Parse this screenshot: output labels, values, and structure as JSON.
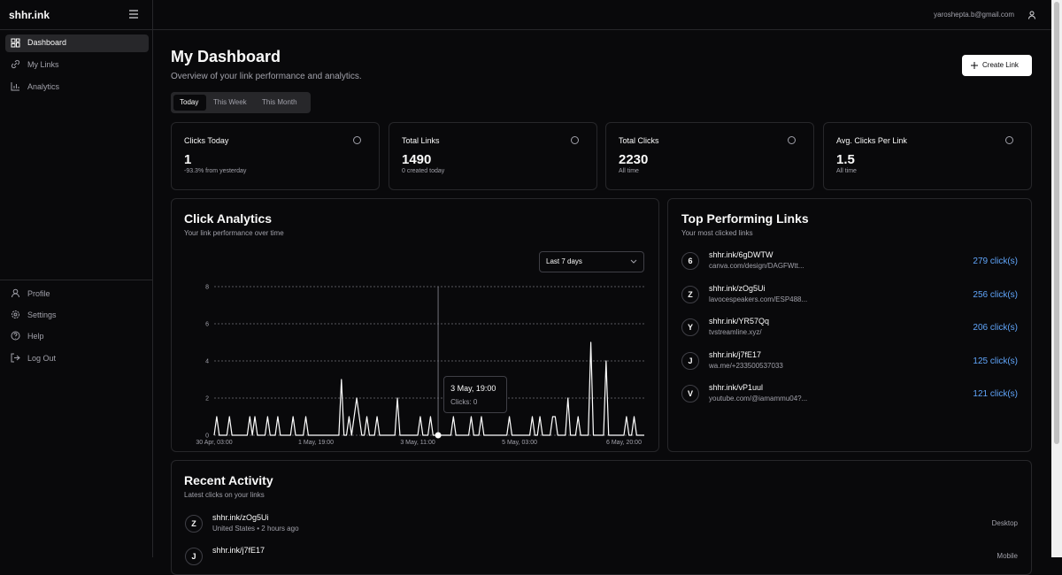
{
  "sidebar": {
    "brand": "shhr.ink",
    "nav": [
      "Dashboard",
      "My Links",
      "Analytics"
    ],
    "footer_nav": [
      "Profile",
      "Settings",
      "Help",
      "Log Out"
    ]
  },
  "header": {
    "email": "yaroshepta.b@gmail.com"
  },
  "page": {
    "title": "My Dashboard",
    "subtitle": "Overview of your link performance and analytics.",
    "tabs": [
      "Today",
      "This Week",
      "This Month"
    ],
    "create_button": "Create Link"
  },
  "stats": [
    {
      "label": "Clicks Today",
      "value": 1,
      "note": "-93.3% from yesterday"
    },
    {
      "label": "Total Links",
      "value": 1490,
      "note": "0 created today"
    },
    {
      "label": "Total Clicks",
      "value": 2230,
      "note": "All time"
    },
    {
      "label": "Avg. Clicks Per Link",
      "value": 1.5,
      "note": "All time"
    }
  ],
  "chart_card": {
    "range_select": "Last 7 days"
  },
  "chart_data": {
    "type": "line",
    "title": "Click Analytics",
    "subtitle": "Your link performance over time",
    "color": "#ffffff",
    "grid": true,
    "ylim": [
      0,
      8
    ],
    "yticks": [
      0,
      2,
      4,
      6,
      8
    ],
    "categories": [
      "30 Apr, 03:00",
      null,
      null,
      null,
      null,
      null,
      null,
      null,
      null,
      null,
      null,
      null,
      null,
      null,
      null,
      null,
      null,
      null,
      null,
      null,
      null,
      null,
      null,
      null,
      null,
      null,
      null,
      null,
      null,
      null,
      null,
      null,
      null,
      null,
      null,
      null,
      null,
      null,
      null,
      null,
      "1 May, 19:00",
      null,
      null,
      null,
      null,
      null,
      null,
      null,
      null,
      null,
      null,
      null,
      null,
      null,
      null,
      null,
      null,
      null,
      null,
      null,
      null,
      null,
      null,
      null,
      null,
      null,
      null,
      null,
      null,
      null,
      null,
      null,
      null,
      null,
      null,
      null,
      null,
      null,
      null,
      null,
      "3 May, 11:00",
      null,
      null,
      null,
      null,
      null,
      null,
      null,
      null,
      null,
      null,
      null,
      null,
      null,
      null,
      null,
      null,
      null,
      null,
      null,
      null,
      null,
      null,
      null,
      null,
      null,
      null,
      null,
      null,
      null,
      null,
      null,
      null,
      null,
      null,
      null,
      null,
      null,
      null,
      null,
      "5 May, 03:00",
      null,
      null,
      null,
      null,
      null,
      null,
      null,
      null,
      null,
      null,
      null,
      null,
      null,
      null,
      null,
      null,
      null,
      null,
      null,
      null,
      null,
      null,
      null,
      null,
      null,
      null,
      null,
      null,
      null,
      null,
      null,
      null,
      null,
      null,
      null,
      null,
      null,
      null,
      null,
      null,
      "6 May, 20:00",
      null,
      null,
      null,
      null,
      null,
      null,
      null,
      null
    ],
    "values": [
      0,
      1,
      0,
      0,
      0,
      0,
      1,
      0,
      0,
      0,
      0,
      0,
      0,
      0,
      1,
      0,
      1,
      0,
      0,
      0,
      0,
      1,
      0,
      0,
      0,
      1,
      0,
      0,
      0,
      0,
      0,
      1,
      0,
      0,
      0,
      0,
      1,
      0,
      0,
      0,
      0,
      0,
      0,
      0,
      0,
      0,
      0,
      0,
      0,
      0,
      3,
      0,
      0,
      1,
      0,
      1,
      2,
      1,
      0,
      0,
      1,
      0,
      0,
      0,
      1,
      0,
      0,
      0,
      0,
      0,
      0,
      0,
      2,
      0,
      0,
      0,
      0,
      0,
      0,
      0,
      0,
      1,
      0,
      0,
      0,
      1,
      0,
      0,
      0,
      0,
      0,
      0,
      0,
      0,
      1,
      0,
      0,
      0,
      0,
      0,
      0,
      1,
      0,
      0,
      0,
      1,
      0,
      0,
      0,
      0,
      0,
      0,
      0,
      0,
      0,
      0,
      1,
      0,
      0,
      0,
      0,
      0,
      0,
      0,
      0,
      1,
      0,
      0,
      1,
      0,
      0,
      0,
      0,
      1,
      1,
      0,
      0,
      0,
      0,
      2,
      0,
      0,
      0,
      1,
      0,
      0,
      0,
      0,
      5,
      0,
      0,
      0,
      0,
      0,
      4,
      0,
      0,
      0,
      0,
      0,
      0,
      0,
      1,
      0,
      0,
      1,
      0,
      0,
      0,
      0
    ],
    "tooltip": {
      "point": 88,
      "label": "3 May, 19:00",
      "text": "Clicks: 0"
    }
  },
  "top_links": {
    "title": "Top Performing Links",
    "subtitle": "Your most clicked links",
    "links": [
      {
        "initial": "6",
        "short": "shhr.ink/6gDWTW",
        "target": "canva.com/design/DAGFWtt...",
        "clicks": "279 click(s)"
      },
      {
        "initial": "Z",
        "short": "shhr.ink/zOg5Ui",
        "target": "lavocespeakers.com/ESP488...",
        "clicks": "256 click(s)"
      },
      {
        "initial": "Y",
        "short": "shhr.ink/YR57Qq",
        "target": "tvstreamline.xyz/",
        "clicks": "206 click(s)"
      },
      {
        "initial": "J",
        "short": "shhr.ink/j7fE17",
        "target": "wa.me/+233500537033",
        "clicks": "125 click(s)"
      },
      {
        "initial": "V",
        "short": "shhr.ink/vP1uul",
        "target": "youtube.com/@iamammu04?...",
        "clicks": "121 click(s)"
      }
    ]
  },
  "recent_activity": {
    "title": "Recent Activity",
    "subtitle": "Latest clicks on your links",
    "items": [
      {
        "initial": "Z",
        "short": "shhr.ink/zOg5Ui",
        "detail": "United States • 2 hours ago",
        "device": "Desktop"
      },
      {
        "initial": "J",
        "short": "shhr.ink/j7fE17",
        "device": "Mobile"
      }
    ]
  }
}
